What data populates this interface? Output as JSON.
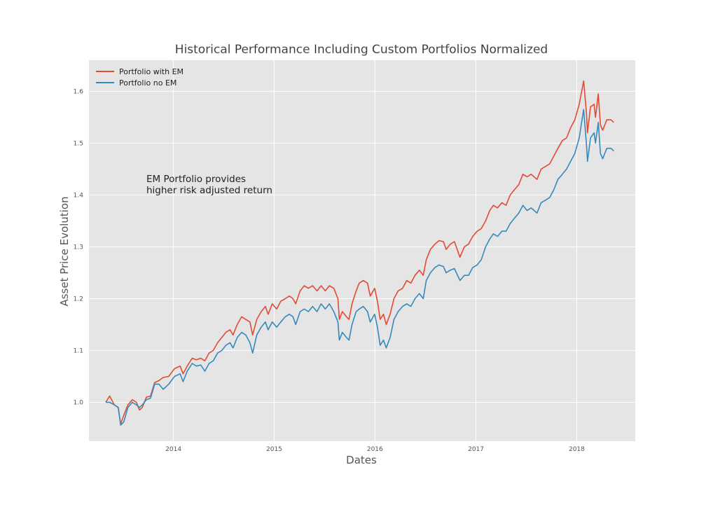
{
  "chart_data": {
    "type": "line",
    "title": "Historical Performance Including Custom Portfolios Normalized",
    "xlabel": "Dates",
    "ylabel": "Asset Price Evolution",
    "x_ticks": [
      "2014",
      "2015",
      "2016",
      "2017",
      "2018"
    ],
    "y_ticks": [
      "1.0",
      "1.1",
      "1.2",
      "1.3",
      "1.4",
      "1.5",
      "1.6"
    ],
    "xlim": [
      "2013-03-01",
      "2018-08-01"
    ],
    "ylim": [
      0.925,
      1.66
    ],
    "grid": true,
    "legend_position": "top-left",
    "annotation": [
      "EM Portfolio provides",
      "higher risk adjusted return"
    ],
    "colors": {
      "background": "#e5e5e5",
      "grid": "#ffffff"
    },
    "series": [
      {
        "name": "Portfolio with EM",
        "color": "#e24a33",
        "points": [
          [
            "2013-05-01",
            1.0
          ],
          [
            "2013-05-15",
            1.012
          ],
          [
            "2013-06-01",
            0.995
          ],
          [
            "2013-06-15",
            0.99
          ],
          [
            "2013-06-24",
            0.958
          ],
          [
            "2013-07-05",
            0.975
          ],
          [
            "2013-07-20",
            0.995
          ],
          [
            "2013-08-05",
            1.005
          ],
          [
            "2013-08-20",
            1.0
          ],
          [
            "2013-08-31",
            0.985
          ],
          [
            "2013-09-10",
            0.99
          ],
          [
            "2013-09-25",
            1.01
          ],
          [
            "2013-10-10",
            1.012
          ],
          [
            "2013-10-25",
            1.038
          ],
          [
            "2013-11-10",
            1.042
          ],
          [
            "2013-11-25",
            1.048
          ],
          [
            "2013-12-15",
            1.05
          ],
          [
            "2014-01-05",
            1.065
          ],
          [
            "2014-01-25",
            1.07
          ],
          [
            "2014-02-05",
            1.055
          ],
          [
            "2014-02-20",
            1.07
          ],
          [
            "2014-03-10",
            1.085
          ],
          [
            "2014-03-25",
            1.082
          ],
          [
            "2014-04-10",
            1.085
          ],
          [
            "2014-04-25",
            1.08
          ],
          [
            "2014-05-10",
            1.095
          ],
          [
            "2014-05-25",
            1.1
          ],
          [
            "2014-06-10",
            1.115
          ],
          [
            "2014-06-25",
            1.125
          ],
          [
            "2014-07-10",
            1.135
          ],
          [
            "2014-07-25",
            1.14
          ],
          [
            "2014-08-05",
            1.13
          ],
          [
            "2014-08-20",
            1.15
          ],
          [
            "2014-09-05",
            1.165
          ],
          [
            "2014-09-20",
            1.16
          ],
          [
            "2014-10-05",
            1.155
          ],
          [
            "2014-10-15",
            1.13
          ],
          [
            "2014-10-30",
            1.16
          ],
          [
            "2014-11-15",
            1.175
          ],
          [
            "2014-11-30",
            1.185
          ],
          [
            "2014-12-10",
            1.17
          ],
          [
            "2014-12-25",
            1.19
          ],
          [
            "2015-01-10",
            1.18
          ],
          [
            "2015-01-25",
            1.195
          ],
          [
            "2015-02-10",
            1.2
          ],
          [
            "2015-02-25",
            1.205
          ],
          [
            "2015-03-10",
            1.2
          ],
          [
            "2015-03-20",
            1.19
          ],
          [
            "2015-04-05",
            1.215
          ],
          [
            "2015-04-20",
            1.225
          ],
          [
            "2015-05-05",
            1.22
          ],
          [
            "2015-05-20",
            1.225
          ],
          [
            "2015-06-05",
            1.215
          ],
          [
            "2015-06-20",
            1.225
          ],
          [
            "2015-07-05",
            1.215
          ],
          [
            "2015-07-20",
            1.225
          ],
          [
            "2015-08-05",
            1.22
          ],
          [
            "2015-08-20",
            1.2
          ],
          [
            "2015-08-25",
            1.16
          ],
          [
            "2015-09-05",
            1.175
          ],
          [
            "2015-09-20",
            1.165
          ],
          [
            "2015-09-29",
            1.16
          ],
          [
            "2015-10-10",
            1.19
          ],
          [
            "2015-10-25",
            1.215
          ],
          [
            "2015-11-05",
            1.23
          ],
          [
            "2015-11-20",
            1.235
          ],
          [
            "2015-12-05",
            1.23
          ],
          [
            "2015-12-15",
            1.205
          ],
          [
            "2015-12-31",
            1.22
          ],
          [
            "2016-01-10",
            1.195
          ],
          [
            "2016-01-20",
            1.16
          ],
          [
            "2016-02-01",
            1.17
          ],
          [
            "2016-02-11",
            1.15
          ],
          [
            "2016-02-25",
            1.17
          ],
          [
            "2016-03-10",
            1.2
          ],
          [
            "2016-03-25",
            1.215
          ],
          [
            "2016-04-10",
            1.22
          ],
          [
            "2016-04-25",
            1.235
          ],
          [
            "2016-05-10",
            1.23
          ],
          [
            "2016-05-25",
            1.245
          ],
          [
            "2016-06-10",
            1.255
          ],
          [
            "2016-06-24",
            1.245
          ],
          [
            "2016-07-05",
            1.275
          ],
          [
            "2016-07-20",
            1.295
          ],
          [
            "2016-08-05",
            1.305
          ],
          [
            "2016-08-20",
            1.312
          ],
          [
            "2016-09-05",
            1.31
          ],
          [
            "2016-09-15",
            1.295
          ],
          [
            "2016-09-30",
            1.305
          ],
          [
            "2016-10-15",
            1.31
          ],
          [
            "2016-11-04",
            1.28
          ],
          [
            "2016-11-20",
            1.3
          ],
          [
            "2016-12-05",
            1.305
          ],
          [
            "2016-12-20",
            1.32
          ],
          [
            "2017-01-05",
            1.33
          ],
          [
            "2017-01-20",
            1.335
          ],
          [
            "2017-02-05",
            1.35
          ],
          [
            "2017-02-20",
            1.37
          ],
          [
            "2017-03-05",
            1.38
          ],
          [
            "2017-03-20",
            1.375
          ],
          [
            "2017-04-05",
            1.385
          ],
          [
            "2017-04-20",
            1.38
          ],
          [
            "2017-05-05",
            1.4
          ],
          [
            "2017-05-20",
            1.41
          ],
          [
            "2017-06-05",
            1.42
          ],
          [
            "2017-06-20",
            1.44
          ],
          [
            "2017-07-05",
            1.435
          ],
          [
            "2017-07-20",
            1.44
          ],
          [
            "2017-08-10",
            1.43
          ],
          [
            "2017-08-25",
            1.45
          ],
          [
            "2017-09-10",
            1.455
          ],
          [
            "2017-09-25",
            1.46
          ],
          [
            "2017-10-10",
            1.475
          ],
          [
            "2017-10-25",
            1.49
          ],
          [
            "2017-11-10",
            1.505
          ],
          [
            "2017-11-25",
            1.51
          ],
          [
            "2017-12-10",
            1.53
          ],
          [
            "2017-12-25",
            1.545
          ],
          [
            "2018-01-10",
            1.575
          ],
          [
            "2018-01-26",
            1.62
          ],
          [
            "2018-02-05",
            1.56
          ],
          [
            "2018-02-09",
            1.52
          ],
          [
            "2018-02-20",
            1.57
          ],
          [
            "2018-03-05",
            1.575
          ],
          [
            "2018-03-10",
            1.55
          ],
          [
            "2018-03-20",
            1.595
          ],
          [
            "2018-03-28",
            1.535
          ],
          [
            "2018-04-05",
            1.525
          ],
          [
            "2018-04-20",
            1.545
          ],
          [
            "2018-05-05",
            1.545
          ],
          [
            "2018-05-15",
            1.54
          ]
        ]
      },
      {
        "name": "Portfolio no EM",
        "color": "#348abd",
        "points": [
          [
            "2013-05-01",
            1.0
          ],
          [
            "2013-05-15",
            1.0
          ],
          [
            "2013-06-01",
            0.995
          ],
          [
            "2013-06-15",
            0.99
          ],
          [
            "2013-06-24",
            0.956
          ],
          [
            "2013-07-05",
            0.962
          ],
          [
            "2013-07-20",
            0.99
          ],
          [
            "2013-08-05",
            1.0
          ],
          [
            "2013-08-20",
            0.995
          ],
          [
            "2013-08-31",
            0.99
          ],
          [
            "2013-09-10",
            0.995
          ],
          [
            "2013-09-25",
            1.005
          ],
          [
            "2013-10-10",
            1.008
          ],
          [
            "2013-10-25",
            1.035
          ],
          [
            "2013-11-10",
            1.035
          ],
          [
            "2013-11-25",
            1.025
          ],
          [
            "2013-12-15",
            1.035
          ],
          [
            "2014-01-05",
            1.05
          ],
          [
            "2014-01-25",
            1.055
          ],
          [
            "2014-02-05",
            1.04
          ],
          [
            "2014-02-20",
            1.06
          ],
          [
            "2014-03-10",
            1.075
          ],
          [
            "2014-03-25",
            1.07
          ],
          [
            "2014-04-10",
            1.072
          ],
          [
            "2014-04-25",
            1.06
          ],
          [
            "2014-05-10",
            1.075
          ],
          [
            "2014-05-25",
            1.08
          ],
          [
            "2014-06-10",
            1.095
          ],
          [
            "2014-06-25",
            1.1
          ],
          [
            "2014-07-10",
            1.11
          ],
          [
            "2014-07-25",
            1.115
          ],
          [
            "2014-08-05",
            1.105
          ],
          [
            "2014-08-20",
            1.125
          ],
          [
            "2014-09-05",
            1.135
          ],
          [
            "2014-09-20",
            1.13
          ],
          [
            "2014-10-05",
            1.115
          ],
          [
            "2014-10-15",
            1.095
          ],
          [
            "2014-10-30",
            1.13
          ],
          [
            "2014-11-15",
            1.145
          ],
          [
            "2014-11-30",
            1.155
          ],
          [
            "2014-12-10",
            1.14
          ],
          [
            "2014-12-25",
            1.155
          ],
          [
            "2015-01-10",
            1.145
          ],
          [
            "2015-01-25",
            1.155
          ],
          [
            "2015-02-10",
            1.165
          ],
          [
            "2015-02-25",
            1.17
          ],
          [
            "2015-03-10",
            1.165
          ],
          [
            "2015-03-20",
            1.15
          ],
          [
            "2015-04-05",
            1.175
          ],
          [
            "2015-04-20",
            1.18
          ],
          [
            "2015-05-05",
            1.175
          ],
          [
            "2015-05-20",
            1.185
          ],
          [
            "2015-06-05",
            1.175
          ],
          [
            "2015-06-20",
            1.19
          ],
          [
            "2015-07-05",
            1.18
          ],
          [
            "2015-07-20",
            1.19
          ],
          [
            "2015-08-05",
            1.175
          ],
          [
            "2015-08-20",
            1.155
          ],
          [
            "2015-08-25",
            1.12
          ],
          [
            "2015-09-05",
            1.135
          ],
          [
            "2015-09-20",
            1.125
          ],
          [
            "2015-09-29",
            1.12
          ],
          [
            "2015-10-10",
            1.15
          ],
          [
            "2015-10-25",
            1.175
          ],
          [
            "2015-11-05",
            1.18
          ],
          [
            "2015-11-20",
            1.185
          ],
          [
            "2015-12-05",
            1.175
          ],
          [
            "2015-12-15",
            1.155
          ],
          [
            "2015-12-31",
            1.17
          ],
          [
            "2016-01-10",
            1.145
          ],
          [
            "2016-01-20",
            1.11
          ],
          [
            "2016-02-01",
            1.12
          ],
          [
            "2016-02-11",
            1.105
          ],
          [
            "2016-02-25",
            1.125
          ],
          [
            "2016-03-10",
            1.16
          ],
          [
            "2016-03-25",
            1.175
          ],
          [
            "2016-04-10",
            1.185
          ],
          [
            "2016-04-25",
            1.19
          ],
          [
            "2016-05-10",
            1.185
          ],
          [
            "2016-05-25",
            1.2
          ],
          [
            "2016-06-10",
            1.21
          ],
          [
            "2016-06-24",
            1.2
          ],
          [
            "2016-07-05",
            1.235
          ],
          [
            "2016-07-20",
            1.25
          ],
          [
            "2016-08-05",
            1.26
          ],
          [
            "2016-08-20",
            1.265
          ],
          [
            "2016-09-05",
            1.262
          ],
          [
            "2016-09-15",
            1.25
          ],
          [
            "2016-09-30",
            1.255
          ],
          [
            "2016-10-15",
            1.258
          ],
          [
            "2016-11-04",
            1.235
          ],
          [
            "2016-11-20",
            1.245
          ],
          [
            "2016-12-05",
            1.245
          ],
          [
            "2016-12-20",
            1.26
          ],
          [
            "2017-01-05",
            1.265
          ],
          [
            "2017-01-20",
            1.275
          ],
          [
            "2017-02-05",
            1.3
          ],
          [
            "2017-02-20",
            1.315
          ],
          [
            "2017-03-05",
            1.325
          ],
          [
            "2017-03-20",
            1.32
          ],
          [
            "2017-04-05",
            1.33
          ],
          [
            "2017-04-20",
            1.33
          ],
          [
            "2017-05-05",
            1.345
          ],
          [
            "2017-05-20",
            1.355
          ],
          [
            "2017-06-05",
            1.365
          ],
          [
            "2017-06-20",
            1.38
          ],
          [
            "2017-07-05",
            1.37
          ],
          [
            "2017-07-20",
            1.375
          ],
          [
            "2017-08-10",
            1.365
          ],
          [
            "2017-08-25",
            1.385
          ],
          [
            "2017-09-10",
            1.39
          ],
          [
            "2017-09-25",
            1.395
          ],
          [
            "2017-10-10",
            1.41
          ],
          [
            "2017-10-25",
            1.43
          ],
          [
            "2017-11-10",
            1.44
          ],
          [
            "2017-11-25",
            1.45
          ],
          [
            "2017-12-10",
            1.465
          ],
          [
            "2017-12-25",
            1.48
          ],
          [
            "2018-01-10",
            1.51
          ],
          [
            "2018-01-26",
            1.565
          ],
          [
            "2018-02-05",
            1.5
          ],
          [
            "2018-02-09",
            1.465
          ],
          [
            "2018-02-20",
            1.51
          ],
          [
            "2018-03-05",
            1.52
          ],
          [
            "2018-03-10",
            1.5
          ],
          [
            "2018-03-20",
            1.54
          ],
          [
            "2018-03-28",
            1.48
          ],
          [
            "2018-04-05",
            1.47
          ],
          [
            "2018-04-20",
            1.49
          ],
          [
            "2018-05-05",
            1.49
          ],
          [
            "2018-05-15",
            1.485
          ]
        ]
      }
    ]
  }
}
